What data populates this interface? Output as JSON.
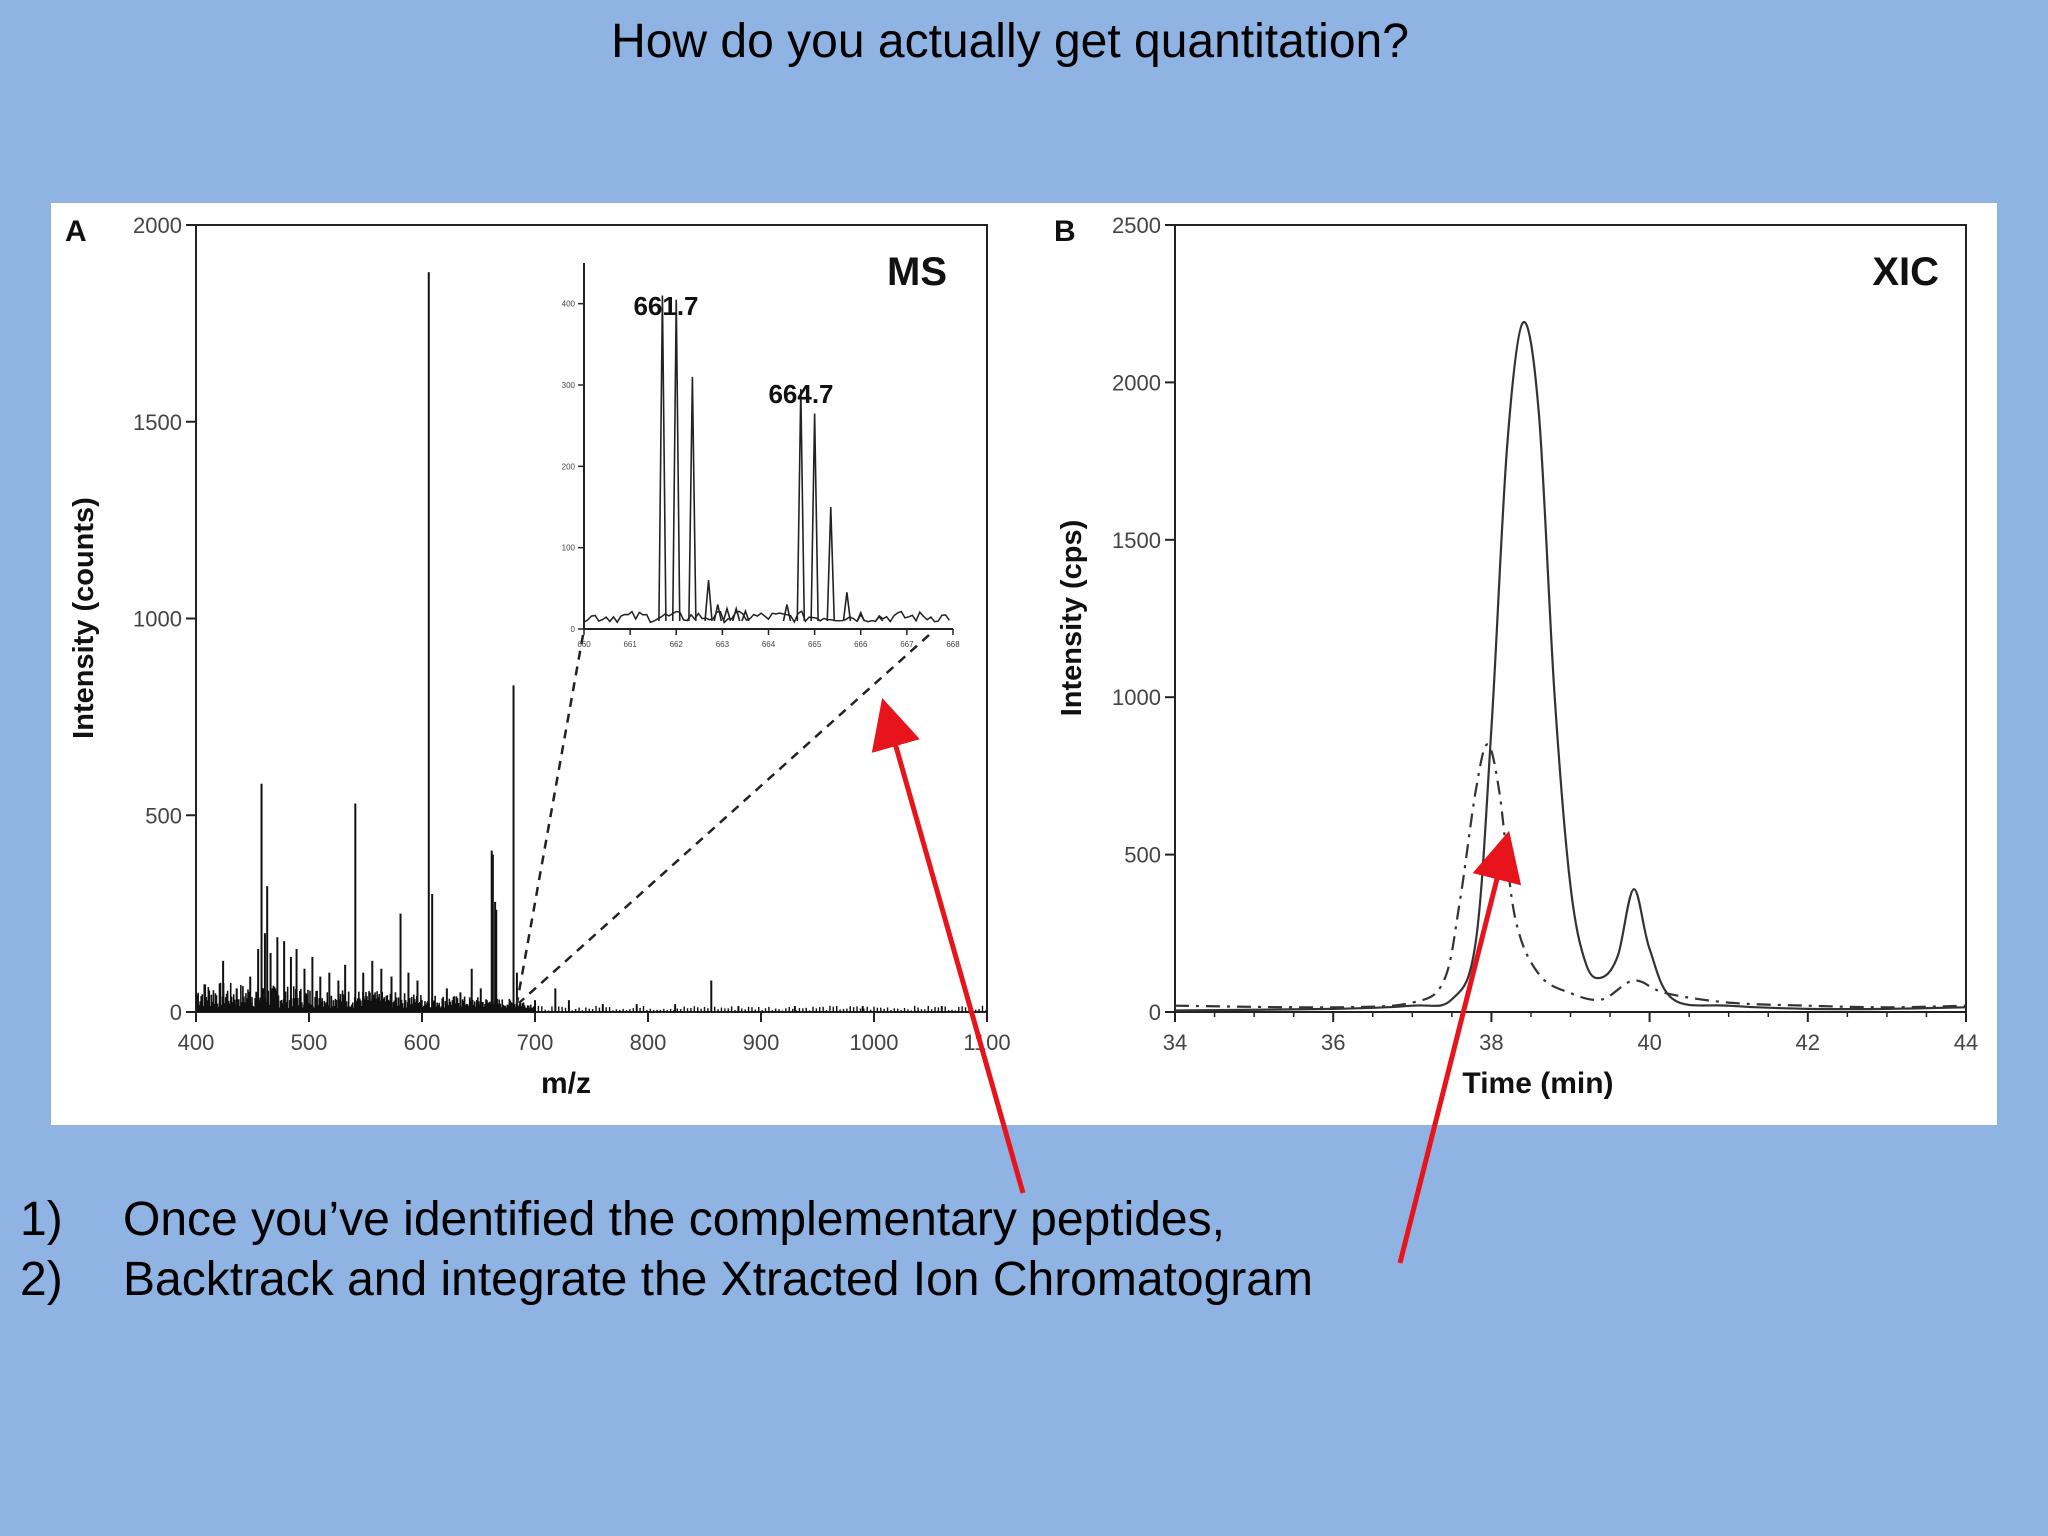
{
  "slide": {
    "title": "How do you actually get quantitation?",
    "bullets": [
      {
        "num": "1)",
        "text": "Once you’ve identified the complementary peptides,"
      },
      {
        "num": "2)",
        "text": "Backtrack and integrate the Xtracted Ion Chromatogram"
      }
    ],
    "arrow_color": "#e8141b",
    "background_color": "#8fb3e2"
  },
  "chart_data": [
    {
      "panel_letter": "A",
      "type": "line",
      "title": "MS",
      "xlabel": "m/z",
      "ylabel": "Intensity (counts)",
      "xlim": [
        400,
        1100
      ],
      "ylim": [
        0,
        2000
      ],
      "x_ticks": [
        "400",
        "500",
        "600",
        "700",
        "800",
        "900",
        "1000",
        "1100"
      ],
      "y_ticks": [
        "0",
        "500",
        "1000",
        "1500",
        "2000"
      ],
      "series": [
        {
          "peaks": [
            [
              408,
              70
            ],
            [
              424,
              130
            ],
            [
              436,
              60
            ],
            [
              448,
              90
            ],
            [
              455,
              160
            ],
            [
              458,
              580
            ],
            [
              461,
              200
            ],
            [
              463,
              320
            ],
            [
              466,
              150
            ],
            [
              472,
              190
            ],
            [
              478,
              180
            ],
            [
              484,
              140
            ],
            [
              489,
              160
            ],
            [
              496,
              110
            ],
            [
              503,
              140
            ],
            [
              510,
              90
            ],
            [
              518,
              100
            ],
            [
              526,
              80
            ],
            [
              532,
              120
            ],
            [
              541,
              530
            ],
            [
              548,
              100
            ],
            [
              556,
              130
            ],
            [
              564,
              110
            ],
            [
              573,
              90
            ],
            [
              581,
              250
            ],
            [
              588,
              100
            ],
            [
              596,
              80
            ],
            [
              606,
              1880
            ],
            [
              609,
              300
            ],
            [
              622,
              60
            ],
            [
              634,
              50
            ],
            [
              644,
              110
            ],
            [
              652,
              60
            ],
            [
              661.7,
              410
            ],
            [
              662.7,
              400
            ],
            [
              664.7,
              280
            ],
            [
              665.7,
              260
            ],
            [
              681,
              830
            ],
            [
              684,
              100
            ],
            [
              700,
              30
            ],
            [
              718,
              60
            ],
            [
              730,
              30
            ],
            [
              760,
              20
            ],
            [
              790,
              20
            ],
            [
              824,
              20
            ],
            [
              856,
              80
            ],
            [
              880,
              15
            ],
            [
              930,
              15
            ],
            [
              990,
              15
            ],
            [
              1060,
              15
            ]
          ]
        }
      ],
      "inset": {
        "xlim": [
          660,
          668
        ],
        "ylim": [
          0,
          450
        ],
        "x_ticks": [
          "660",
          "661",
          "662",
          "663",
          "664",
          "665",
          "666",
          "667",
          "668"
        ],
        "y_ticks": [
          "0",
          "100",
          "200",
          "300",
          "400"
        ],
        "annotations": [
          "661.7",
          "664.7"
        ],
        "peaks": [
          [
            661.7,
            410
          ],
          [
            662.0,
            405
          ],
          [
            662.35,
            310
          ],
          [
            662.7,
            60
          ],
          [
            662.9,
            30
          ],
          [
            663.1,
            25
          ],
          [
            663.3,
            25
          ],
          [
            663.5,
            22
          ],
          [
            664.4,
            30
          ],
          [
            664.7,
            295
          ],
          [
            665.0,
            265
          ],
          [
            665.35,
            150
          ],
          [
            665.7,
            45
          ],
          [
            666.0,
            20
          ],
          [
            666.4,
            15
          ]
        ]
      }
    },
    {
      "panel_letter": "B",
      "type": "line",
      "title": "XIC",
      "xlabel": "Time (min)",
      "ylabel": "Intensity (cps)",
      "xlim": [
        34,
        44
      ],
      "ylim": [
        0,
        2500
      ],
      "x_ticks": [
        "34",
        "36",
        "38",
        "40",
        "42",
        "44"
      ],
      "y_ticks": [
        "0",
        "500",
        "1000",
        "1500",
        "2000",
        "2500"
      ],
      "series": [
        {
          "style": "solid",
          "x": [
            34,
            36,
            37,
            37.5,
            37.8,
            38.0,
            38.2,
            38.4,
            38.6,
            38.8,
            39.0,
            39.2,
            39.4,
            39.6,
            39.8,
            40.0,
            40.3,
            41,
            42,
            43,
            44
          ],
          "y": [
            5,
            10,
            20,
            40,
            220,
            900,
            1800,
            2190,
            1900,
            1000,
            400,
            150,
            110,
            180,
            390,
            200,
            40,
            20,
            10,
            10,
            15
          ]
        },
        {
          "style": "dashed",
          "x": [
            34,
            36,
            37,
            37.4,
            37.6,
            37.8,
            37.95,
            38.1,
            38.3,
            38.6,
            39.0,
            39.4,
            39.8,
            40.2,
            41,
            42,
            43,
            44
          ],
          "y": [
            20,
            15,
            30,
            100,
            350,
            700,
            850,
            700,
            300,
            120,
            60,
            40,
            100,
            60,
            30,
            20,
            15,
            20
          ]
        }
      ]
    }
  ]
}
